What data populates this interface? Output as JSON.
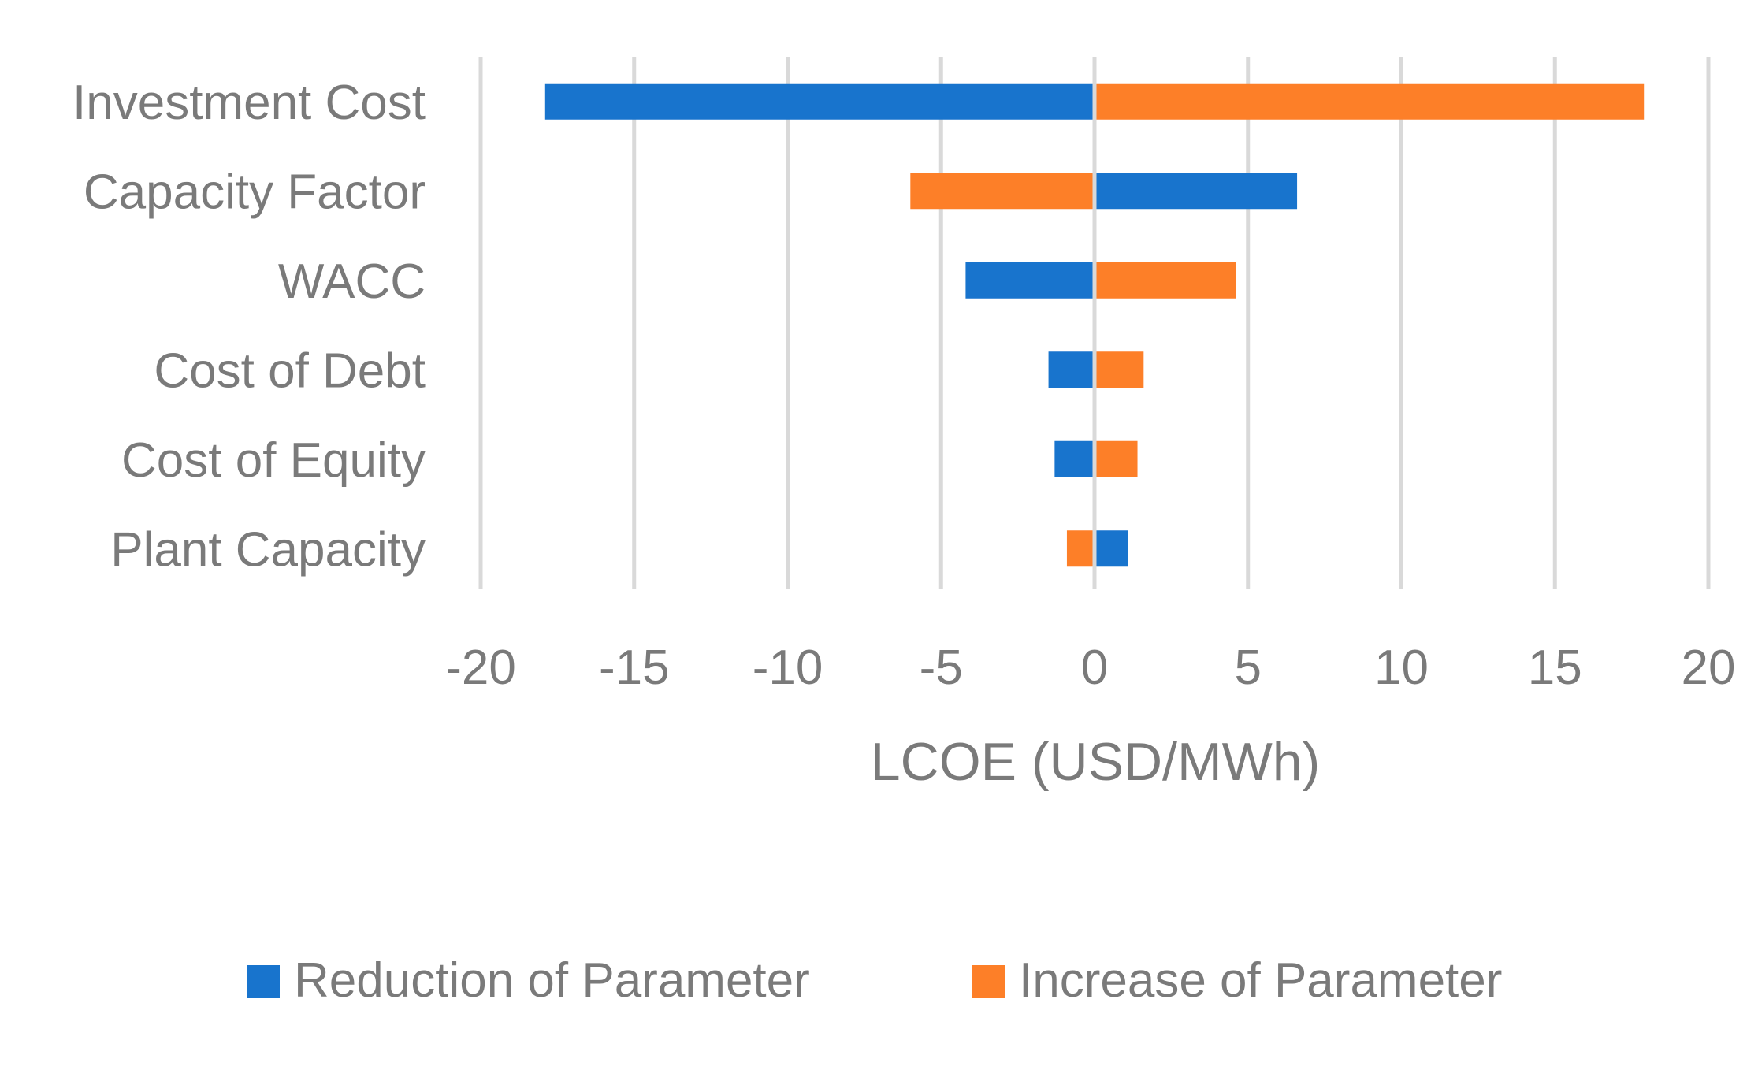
{
  "chart_data": {
    "type": "bar",
    "orientation": "horizontal",
    "chart_style": "tornado",
    "title": "",
    "xlabel": "LCOE (USD/MWh)",
    "ylabel": "",
    "xlim": [
      -20,
      20
    ],
    "x_ticks": [
      -20,
      -15,
      -10,
      -5,
      0,
      5,
      10,
      15,
      20
    ],
    "x_tick_labels": [
      "-20",
      "-15",
      "-10",
      "-5",
      "0",
      "5",
      "10",
      "15",
      "20"
    ],
    "grid": "vertical",
    "legend_position": "bottom",
    "categories": [
      "Investment Cost",
      "Capacity Factor",
      "WACC",
      "Cost of Debt",
      "Cost of Equity",
      "Plant Capacity"
    ],
    "series": [
      {
        "name": "Reduction of Parameter",
        "color": "#1874cd",
        "values": [
          -17.9,
          6.6,
          -4.2,
          -1.5,
          -1.3,
          1.1
        ]
      },
      {
        "name": "Increase of Parameter",
        "color": "#fd7f28",
        "values": [
          17.9,
          -6.0,
          4.6,
          1.6,
          1.4,
          -0.9
        ]
      }
    ]
  },
  "colors": {
    "axis_text": "#7a7a7a",
    "gridline": "#d9d9d9",
    "background": "#ffffff"
  }
}
